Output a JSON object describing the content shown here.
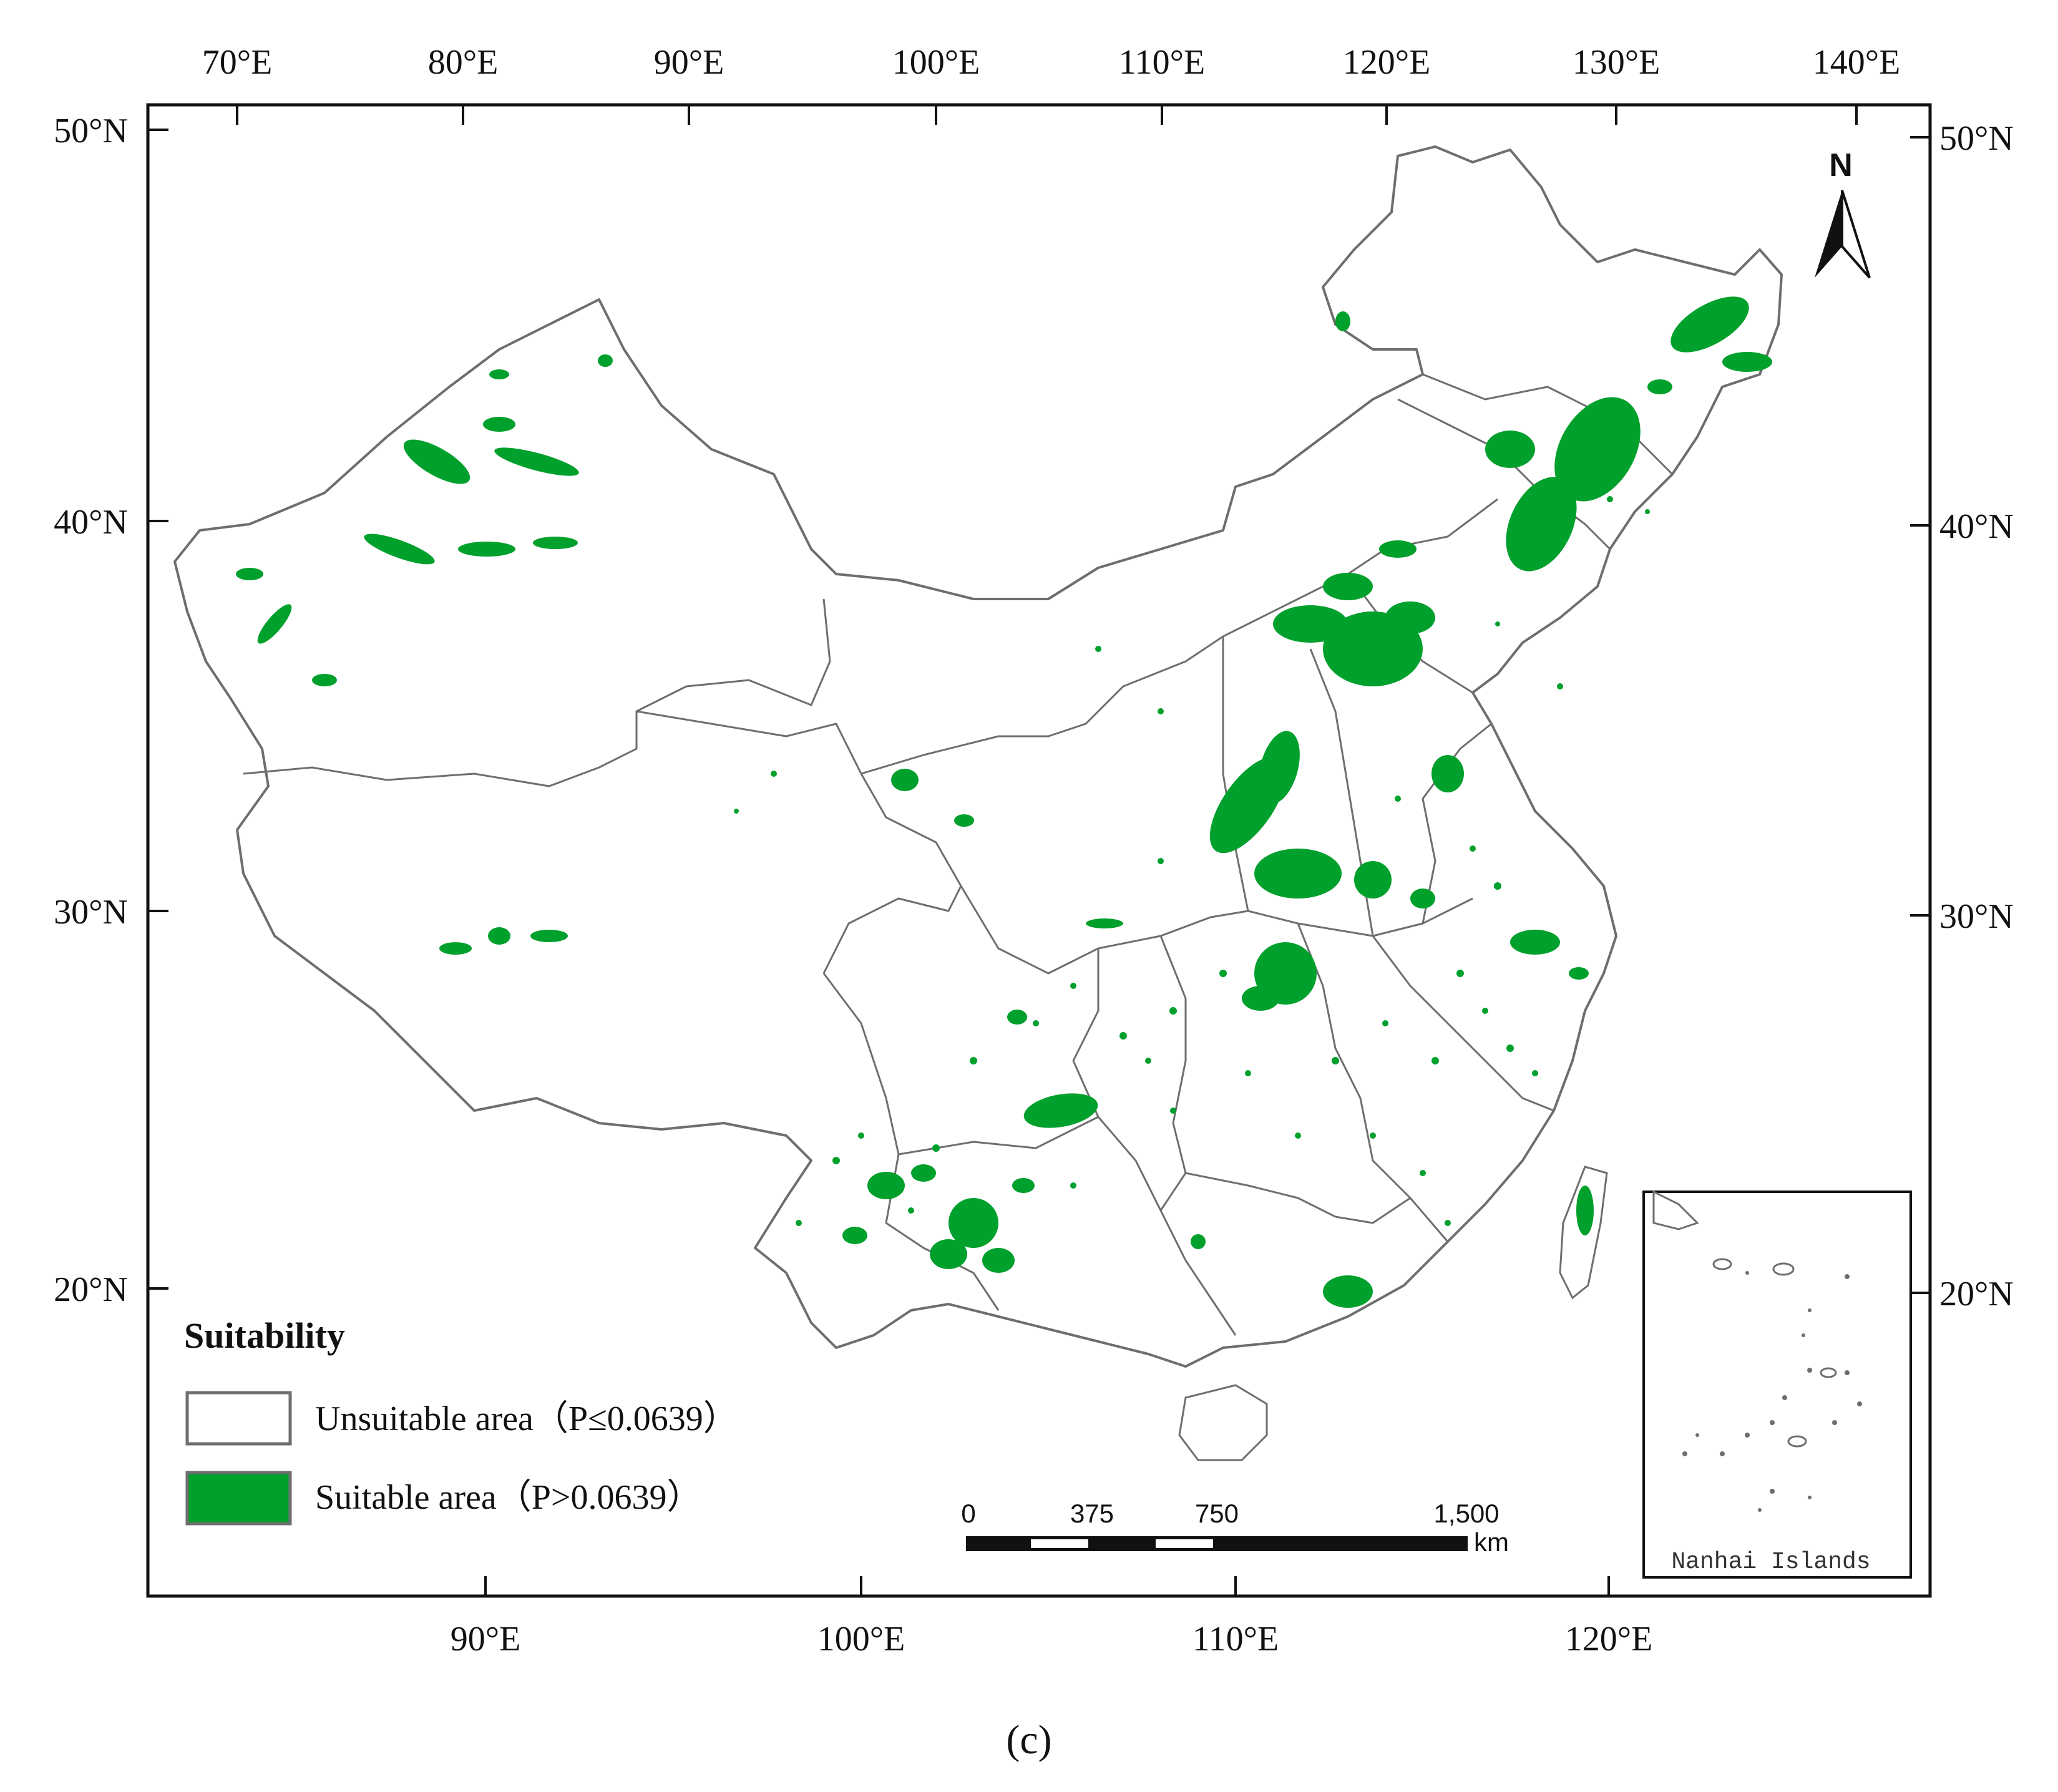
{
  "map": {
    "top_lon_labels": [
      "70°E",
      "80°E",
      "90°E",
      "100°E",
      "110°E",
      "120°E",
      "130°E",
      "140°E"
    ],
    "bottom_lon_labels": [
      "90°E",
      "100°E",
      "110°E",
      "120°E"
    ],
    "left_lat_labels": [
      "50°N",
      "40°N",
      "30°N",
      "20°N"
    ],
    "right_lat_labels": [
      "50°N",
      "40°N",
      "30°N",
      "20°N"
    ],
    "colors": {
      "suitable": "#00a02c",
      "boundary": "#6e6e6e",
      "frame": "#111111"
    }
  },
  "legend": {
    "title": "Suitability",
    "items": [
      {
        "label": "Unsuitable area（P≤0.0639）",
        "swatch": "#ffffff"
      },
      {
        "label": "Suitable area（P>0.0639）",
        "swatch": "#00a02c"
      }
    ]
  },
  "scale_bar": {
    "ticks": [
      "0",
      "375",
      "750",
      "1,500"
    ],
    "unit": "km"
  },
  "north_arrow": {
    "label": "N",
    "icon": "north-arrow-icon"
  },
  "inset": {
    "label": "Nanhai Islands"
  },
  "caption": "(c)"
}
